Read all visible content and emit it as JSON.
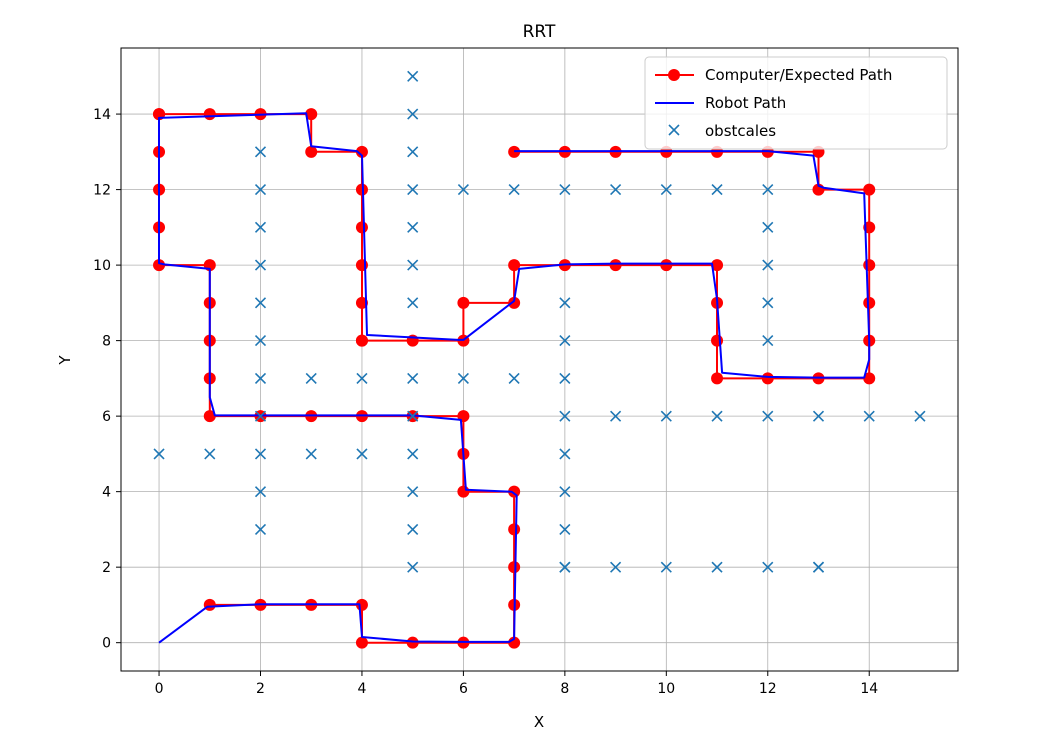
{
  "chart_data": {
    "type": "line",
    "title": "RRT",
    "xlabel": "X",
    "ylabel": "Y",
    "xlim": [
      -0.75,
      15.75
    ],
    "ylim": [
      -0.75,
      15.75
    ],
    "xticks": [
      0,
      2,
      4,
      6,
      8,
      10,
      12,
      14
    ],
    "yticks": [
      0,
      2,
      4,
      6,
      8,
      10,
      12,
      14
    ],
    "grid": true,
    "legend_position": "top-right",
    "series": [
      {
        "name": "Computer/Expected Path",
        "style": "line-with-markers",
        "color": "#ff0000",
        "x": [
          0,
          0,
          0,
          0,
          0,
          1,
          1,
          1,
          1,
          1,
          2,
          3,
          4,
          5,
          6,
          6,
          6,
          7,
          7,
          7,
          7,
          7,
          6,
          5,
          4,
          4,
          3,
          2,
          1
        ],
        "y": [
          14,
          13,
          12,
          11,
          10,
          10,
          9,
          8,
          7,
          6,
          6,
          6,
          6,
          6,
          6,
          5,
          4,
          4,
          3,
          2,
          1,
          0,
          0,
          0,
          0,
          1,
          1,
          1,
          1
        ],
        "x2": [
          0,
          1,
          2,
          3,
          3,
          4,
          4,
          4,
          4,
          4,
          4,
          4,
          5,
          6,
          6,
          7,
          7,
          8,
          9,
          10,
          11,
          11,
          11,
          11,
          12,
          13,
          14,
          14,
          14,
          14,
          14,
          14,
          13,
          13,
          12,
          11,
          10,
          9,
          8,
          7
        ],
        "y2": [
          14,
          14,
          14,
          14,
          13,
          13,
          12,
          11,
          10,
          9,
          8,
          8,
          8,
          8,
          9,
          9,
          10,
          10,
          10,
          10,
          10,
          9,
          8,
          7,
          7,
          7,
          7,
          8,
          9,
          10,
          11,
          12,
          12,
          13,
          13,
          13,
          13,
          13,
          13,
          13
        ]
      },
      {
        "name": "Robot Path",
        "style": "line",
        "color": "#0000ff",
        "x": [
          0,
          0.95,
          2,
          3,
          3.95,
          4,
          5,
          6,
          6.05,
          6.9,
          7,
          7.05,
          6.95,
          6.05,
          5.95,
          5,
          4,
          3,
          2,
          1.1,
          1,
          1,
          0.1,
          0,
          0,
          2.9,
          3,
          3.9,
          4,
          4.1,
          5.9,
          6,
          6.9,
          7,
          7.1,
          8,
          9,
          10,
          10.9,
          11,
          11.1,
          12,
          13,
          13.9,
          14,
          14,
          13.9,
          13.1,
          13,
          12.9,
          12,
          7
        ],
        "y": [
          0,
          0.95,
          1.02,
          1.02,
          1.02,
          0.15,
          0.03,
          0.02,
          0.02,
          0.02,
          0.1,
          3.9,
          4,
          4.05,
          5.9,
          6.02,
          6.02,
          6.02,
          6.02,
          6.02,
          6.5,
          9.9,
          10.02,
          10.05,
          13.9,
          14.02,
          13.15,
          13.02,
          12.9,
          8.15,
          8.02,
          8.02,
          8.95,
          9.05,
          9.9,
          10.02,
          10.04,
          10.04,
          10.04,
          9.1,
          7.15,
          7.04,
          7.02,
          7.02,
          7.5,
          8,
          11.9,
          12.05,
          12.1,
          12.9,
          13.02,
          13.02
        ]
      },
      {
        "name": "obstcales",
        "style": "markers-x",
        "color": "#1f77b4",
        "x": [
          5,
          5,
          5,
          5,
          5,
          5,
          5,
          5,
          5,
          5,
          5,
          5,
          5,
          2,
          2,
          2,
          2,
          2,
          2,
          2,
          2,
          2,
          2,
          2,
          0,
          1,
          3,
          4,
          3,
          4,
          6,
          7,
          6,
          7,
          8,
          8,
          8,
          8,
          8,
          8,
          8,
          8,
          8,
          8,
          9,
          10,
          11,
          12,
          13,
          9,
          10,
          11,
          12,
          13,
          12,
          12,
          12,
          12,
          9,
          10,
          11,
          12,
          13,
          14,
          15
        ],
        "y": [
          15,
          14,
          13,
          12,
          11,
          10,
          9,
          7,
          6,
          5,
          4,
          3,
          2,
          13,
          12,
          11,
          10,
          9,
          8,
          7,
          6,
          5,
          4,
          3,
          5,
          5,
          7,
          7,
          5,
          5,
          12,
          12,
          7,
          7,
          12,
          9,
          8,
          7,
          6,
          5,
          4,
          3,
          2,
          2,
          12,
          12,
          12,
          12,
          2,
          2,
          2,
          2,
          2,
          2,
          11,
          10,
          9,
          8,
          6,
          6,
          6,
          6,
          6,
          6,
          6
        ]
      }
    ],
    "legend": [
      "Computer/Expected Path",
      "Robot Path",
      "obstcales"
    ]
  }
}
